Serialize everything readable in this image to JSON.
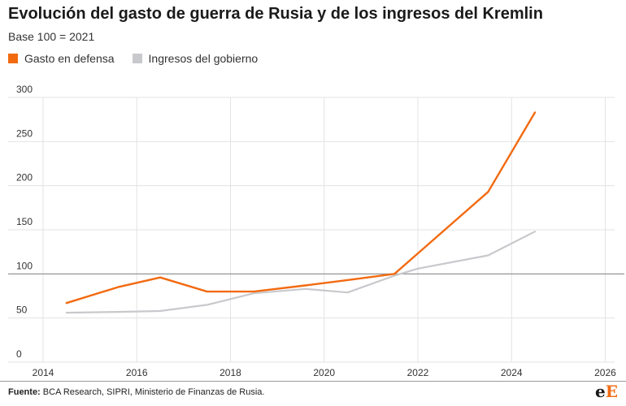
{
  "header": {
    "title": "Evolución del gasto de guerra de Rusia y de los ingresos del Kremlin",
    "subtitle": "Base 100 = 2021"
  },
  "colors": {
    "defense": "#f26a10",
    "revenue": "#c8c9cc",
    "grid": "#e3e3e3",
    "baseline": "#8a8a8a",
    "text": "#333333"
  },
  "footer": {
    "source_label": "Fuente:",
    "source_text": " BCA Research, SIPRI, Ministerio de Finanzas de Rusia.",
    "logo_left": "e",
    "logo_right": "E"
  },
  "chart_data": {
    "type": "line",
    "title": "Evolución del gasto de guerra de Rusia y de los ingresos del Kremlin",
    "subtitle": "Base 100 = 2021",
    "xlabel": "",
    "ylabel": "",
    "xlim": [
      2014,
      2026.2
    ],
    "ylim": [
      0,
      300
    ],
    "x_ticks": [
      2014,
      2016,
      2018,
      2020,
      2022,
      2024,
      2026
    ],
    "y_ticks": [
      0,
      50,
      100,
      150,
      200,
      250,
      300
    ],
    "reference_line": 100,
    "grid": true,
    "legend_position": "top-left",
    "series": [
      {
        "name": "Gasto en defensa",
        "color": "#f26a10",
        "x": [
          2014.5,
          2015.6,
          2016.5,
          2017.5,
          2018.5,
          2019.6,
          2020.5,
          2021.5,
          2023.5,
          2024.5
        ],
        "values": [
          67,
          85,
          96,
          80,
          80,
          87,
          93,
          100,
          193,
          283
        ]
      },
      {
        "name": "Ingresos del gobierno",
        "color": "#c8c9cc",
        "x": [
          2014.5,
          2015.6,
          2016.5,
          2017.5,
          2018.5,
          2019.6,
          2020.5,
          2021.5,
          2022,
          2023.5,
          2024.5
        ],
        "values": [
          56,
          57,
          58,
          65,
          78,
          83,
          79,
          98,
          106,
          121,
          148
        ]
      }
    ]
  }
}
